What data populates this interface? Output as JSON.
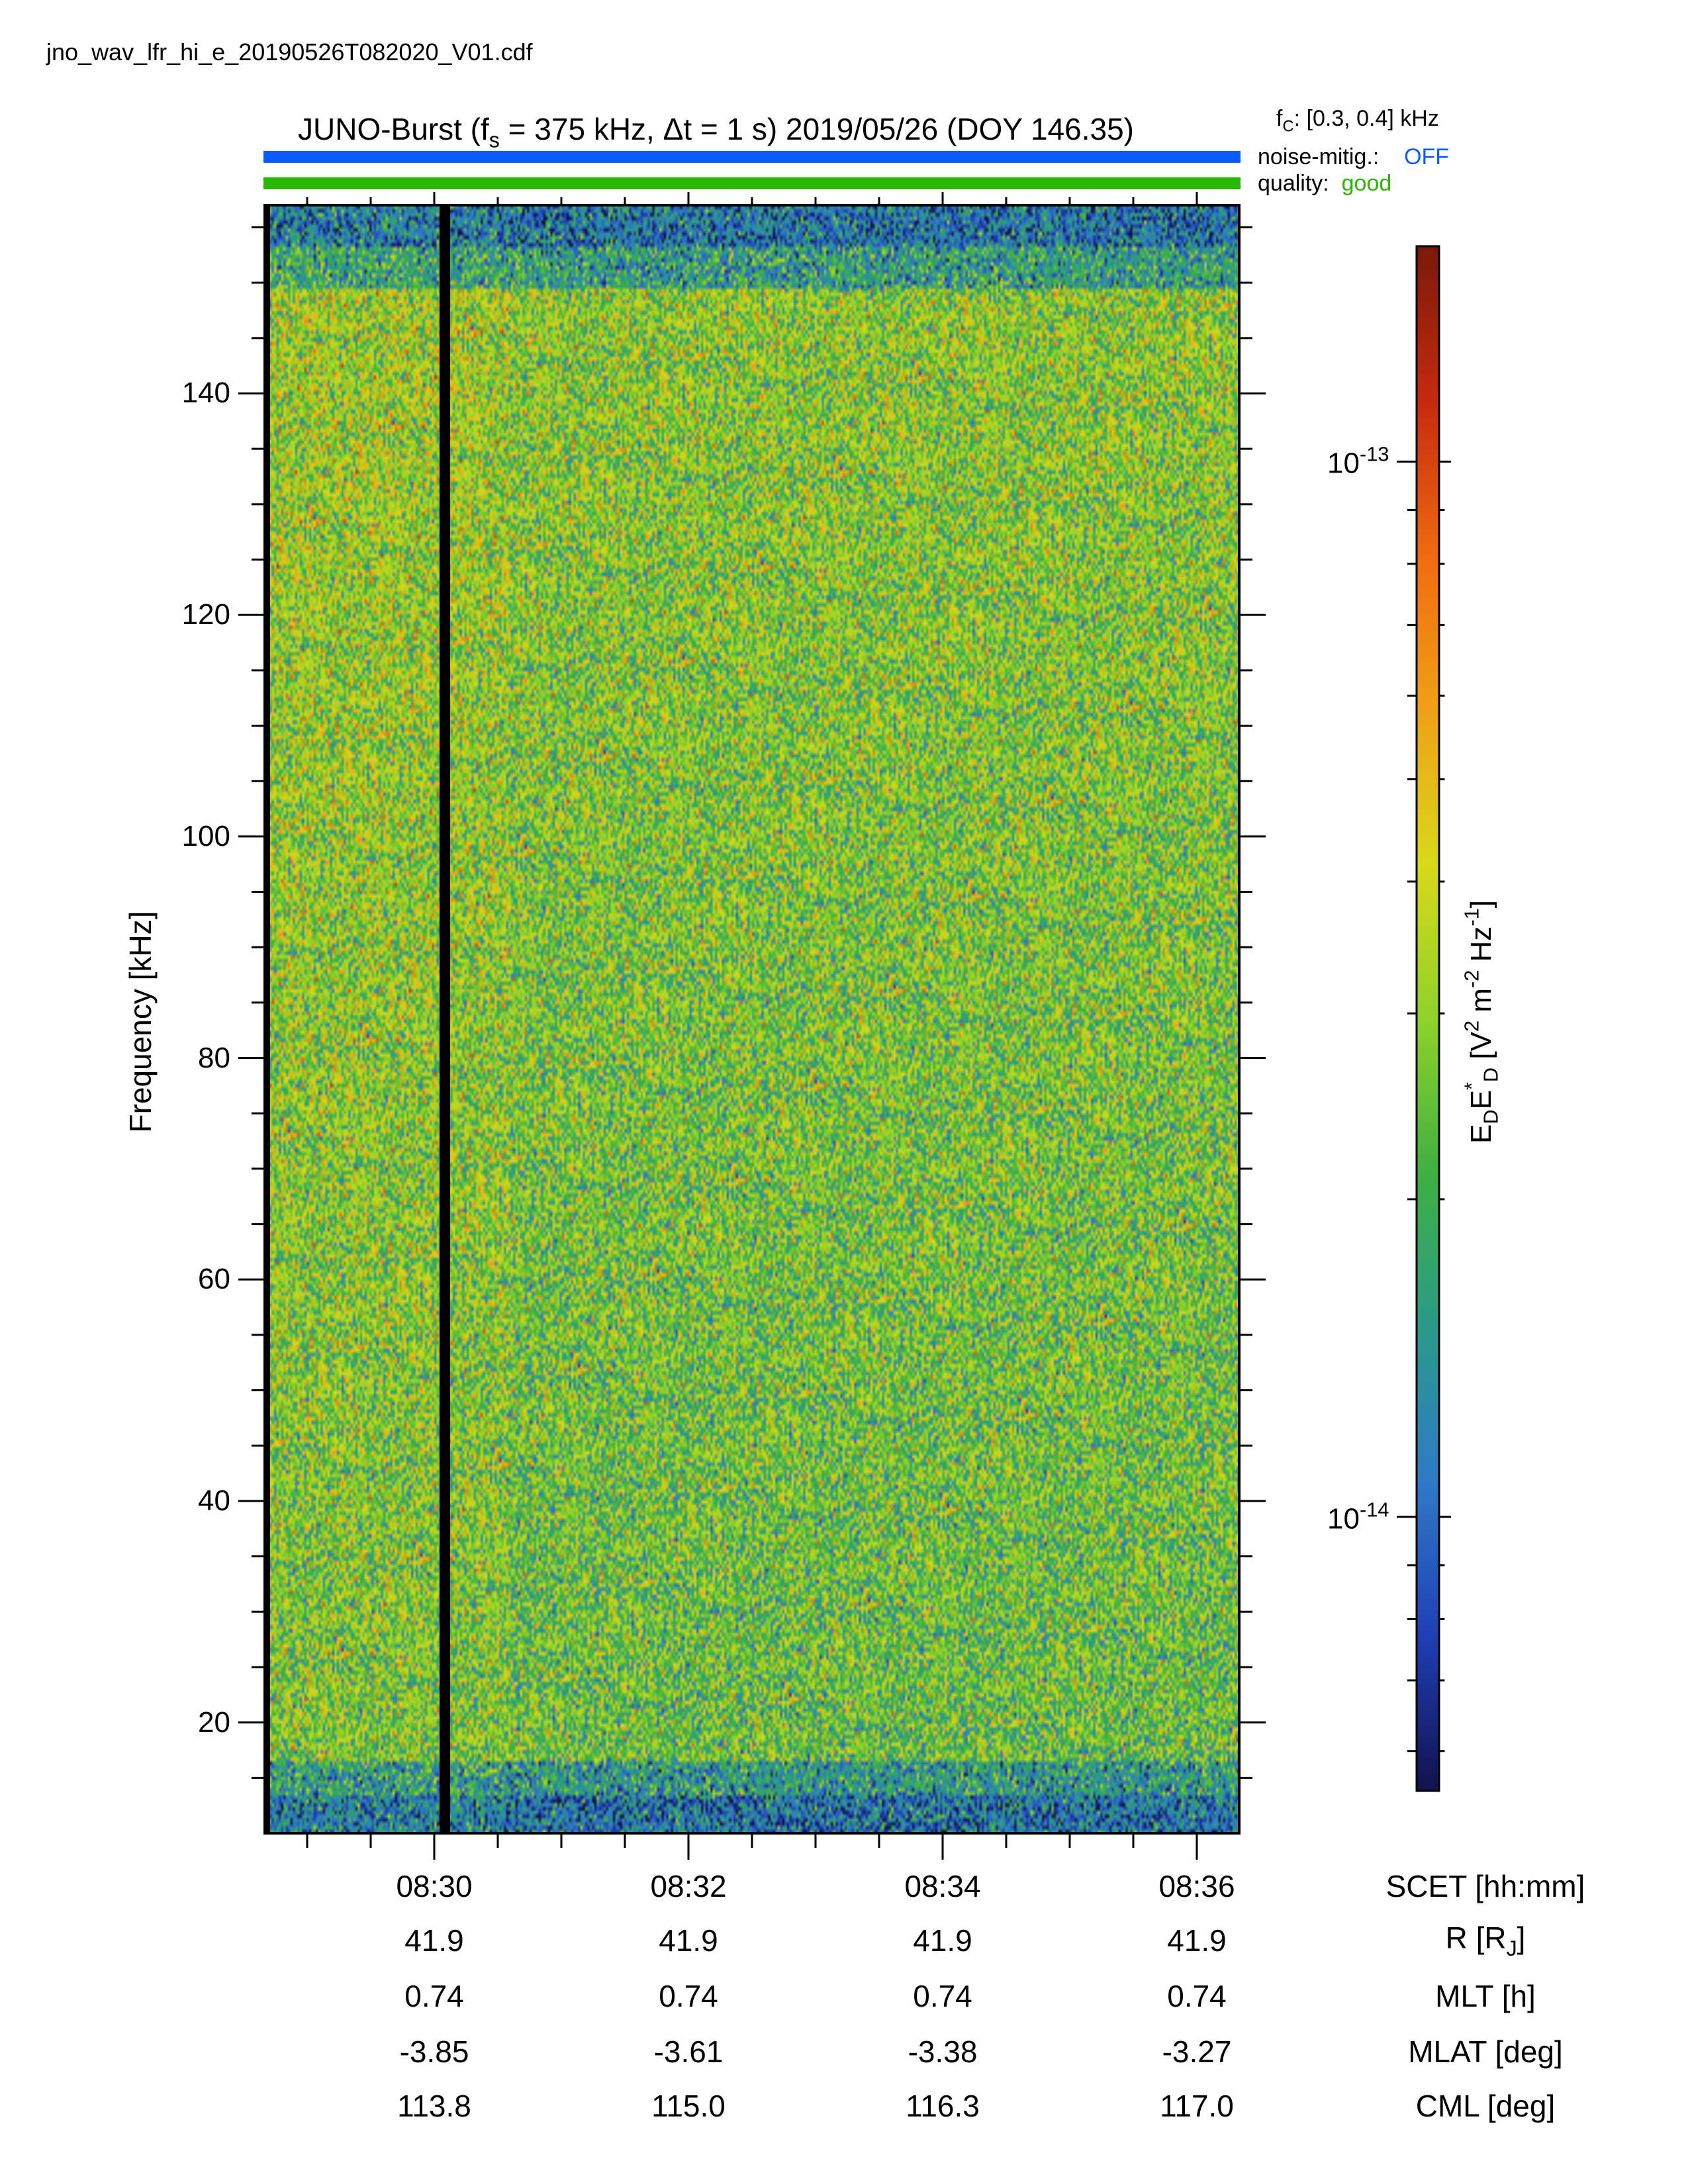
{
  "file_name": "jno_wav_lfr_hi_e_20190526T082020_V01.cdf",
  "title": {
    "prefix": "JUNO-Burst (f",
    "fs_sub": "s",
    "middle": " = 375 kHz, Δt = 1 s)  2019/05/26 (DOY 146.35)"
  },
  "fc": {
    "symbol": "f",
    "sub": "C",
    "text": ": [0.3, 0.4] kHz"
  },
  "noise_mitigation": {
    "label": "noise-mitig.:",
    "value": "OFF",
    "color": "#0b5cff"
  },
  "quality": {
    "label": "quality:",
    "value": "good",
    "color": "#2ab800"
  },
  "colors": {
    "noise_bar": "#0b5cff",
    "quality_bar": "#2ab800",
    "data_gap": "#000000"
  },
  "colorbar": {
    "label": {
      "e1": "E",
      "e1_sub": "D",
      "e2": "E",
      "e2_sup": "*",
      "e2_sub": "D",
      "units_open": " [V",
      "v_sup": "2",
      "m": " m",
      "m_sup": "-2",
      "hz": " Hz",
      "hz_sup": "-1",
      "close": "]"
    },
    "scale": "log",
    "tick_labels": [
      {
        "base": "10",
        "exp": "-13",
        "value": 1e-13
      },
      {
        "base": "10",
        "exp": "-14",
        "value": 1e-14
      }
    ],
    "range": [
      5.5e-15,
      1.6e-13
    ],
    "colormap": [
      "#12124e",
      "#1f3fb5",
      "#2f79c7",
      "#2a9a8a",
      "#3fb040",
      "#8fd22a",
      "#d8d81a",
      "#f0a016",
      "#f06a10",
      "#c62a0e",
      "#7a1a0a"
    ]
  },
  "chart_data": {
    "type": "heatmap",
    "title": "JUNO-Burst (fs = 375 kHz, Δt = 1 s)  2019/05/26 (DOY 146.35)",
    "ylabel": "Frequency [kHz]",
    "y_ticks": [
      20,
      40,
      60,
      80,
      100,
      120,
      140
    ],
    "ylim": [
      10,
      157
    ],
    "x_range": [
      "08:28:40",
      "08:36:20"
    ],
    "x_ticks": [
      "08:30",
      "08:32",
      "08:34",
      "08:36"
    ],
    "data_gap": "08:30:05",
    "colorbar_scale": "log",
    "value_range": [
      5.5e-15,
      1.6e-13
    ],
    "ephemeris": [
      {
        "label": "SCET [hh:mm]",
        "values": [
          "08:30",
          "08:32",
          "08:34",
          "08:36"
        ]
      },
      {
        "label": "R [R_J]",
        "values": [
          "41.9",
          "41.9",
          "41.9",
          "41.9"
        ]
      },
      {
        "label": "MLT [h]",
        "values": [
          "0.74",
          "0.74",
          "0.74",
          "0.74"
        ]
      },
      {
        "label": "MLAT [deg]",
        "values": [
          "-3.85",
          "-3.61",
          "-3.38",
          "-3.27"
        ]
      },
      {
        "label": "CML [deg]",
        "values": [
          "113.8",
          "115.0",
          "116.3",
          "117.0"
        ]
      }
    ]
  },
  "ephemeris_labels": {
    "scet": "SCET [hh:mm]",
    "r": "R [R",
    "r_sub": "J",
    "r_close": "]",
    "mlt": "MLT [h]",
    "mlat": "MLAT [deg]",
    "cml": "CML [deg]"
  }
}
